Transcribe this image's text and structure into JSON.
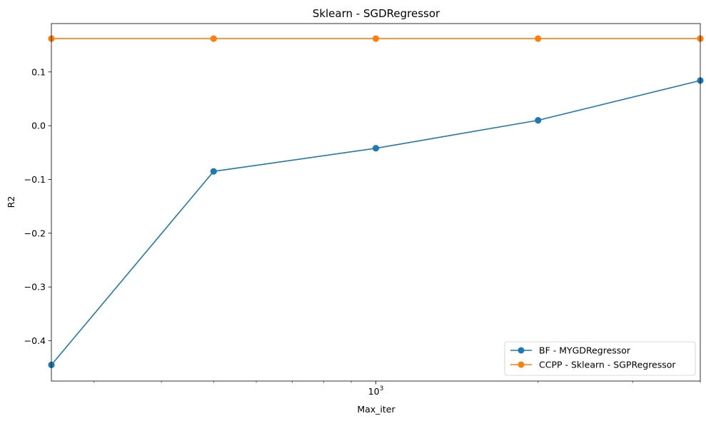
{
  "chart_data": {
    "type": "line",
    "title": "Sklearn - SGDRegressor",
    "xlabel": "Max_iter",
    "ylabel": "R2",
    "xscale": "log",
    "x": [
      250,
      500,
      1000,
      2000,
      4000
    ],
    "xlim": [
      250,
      4000
    ],
    "ylim": [
      -0.475,
      0.19
    ],
    "x_major_ticks": [
      {
        "value": 1000,
        "base": "10",
        "exponent": "3"
      }
    ],
    "x_minor_ticks": [
      300,
      400,
      500,
      600,
      700,
      800,
      900,
      2000,
      3000,
      4000
    ],
    "y_ticks": [
      {
        "value": -0.4,
        "label": "−0.4"
      },
      {
        "value": -0.3,
        "label": "−0.3"
      },
      {
        "value": -0.2,
        "label": "−0.2"
      },
      {
        "value": -0.1,
        "label": "−0.1"
      },
      {
        "value": 0.0,
        "label": "0.0"
      },
      {
        "value": 0.1,
        "label": "0.1"
      }
    ],
    "grid": false,
    "legend_position": "lower-right",
    "series": [
      {
        "name": "BF - MYGDRegressor",
        "color": "#1f77b4",
        "marker": "circle",
        "values": [
          -0.445,
          -0.085,
          -0.042,
          0.01,
          0.084
        ]
      },
      {
        "name": "CCPP - Sklearn - SGPRegressor",
        "color": "#ff7f0e",
        "marker": "circle",
        "values": [
          0.162,
          0.162,
          0.162,
          0.162,
          0.162
        ]
      }
    ]
  }
}
